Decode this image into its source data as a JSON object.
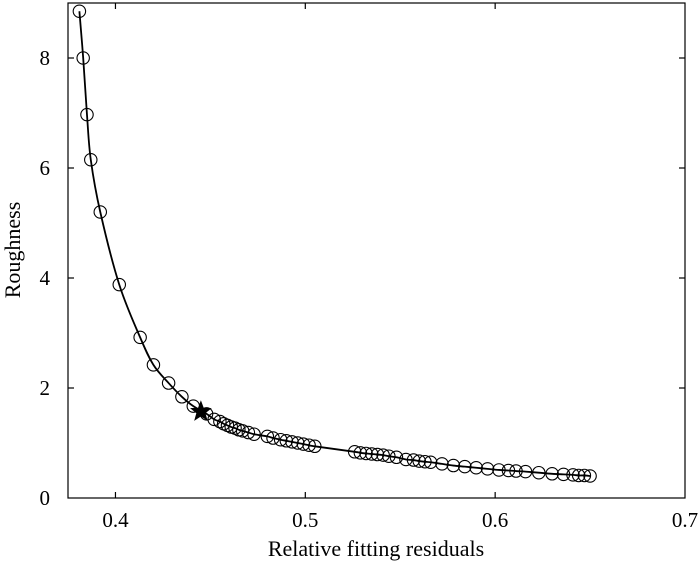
{
  "chart_data": {
    "type": "scatter",
    "title": "",
    "xlabel": "Relative fitting residuals",
    "ylabel": "Roughness",
    "xlim": [
      0.375,
      0.7
    ],
    "ylim": [
      0,
      9
    ],
    "xticks": [
      0.4,
      0.5,
      0.6,
      0.7
    ],
    "yticks": [
      0,
      2,
      4,
      6,
      8
    ],
    "xtick_labels": [
      "0.4",
      "0.5",
      "0.6",
      "0.7"
    ],
    "ytick_labels": [
      "0",
      "2",
      "4",
      "6",
      "8"
    ],
    "grid": false,
    "legend": "none",
    "series": [
      {
        "marker": "open-circle",
        "line": "smooth-curve",
        "x": [
          0.381,
          0.383,
          0.385,
          0.387,
          0.392,
          0.402,
          0.413,
          0.42,
          0.428,
          0.435,
          0.441,
          0.448,
          0.452,
          0.455,
          0.457,
          0.459,
          0.461,
          0.463,
          0.465,
          0.467,
          0.47,
          0.473,
          0.48,
          0.483,
          0.487,
          0.49,
          0.493,
          0.496,
          0.499,
          0.502,
          0.505,
          0.526,
          0.529,
          0.532,
          0.535,
          0.538,
          0.541,
          0.544,
          0.548,
          0.553,
          0.557,
          0.56,
          0.563,
          0.566,
          0.572,
          0.578,
          0.584,
          0.59,
          0.596,
          0.602,
          0.607,
          0.611,
          0.616,
          0.623,
          0.63,
          0.636,
          0.641,
          0.644,
          0.647,
          0.65
        ],
        "y": [
          8.85,
          8.0,
          6.97,
          6.15,
          5.2,
          3.88,
          2.92,
          2.42,
          2.09,
          1.84,
          1.67,
          1.53,
          1.43,
          1.39,
          1.35,
          1.32,
          1.29,
          1.27,
          1.24,
          1.22,
          1.19,
          1.16,
          1.12,
          1.09,
          1.06,
          1.04,
          1.02,
          1.0,
          0.98,
          0.96,
          0.94,
          0.84,
          0.82,
          0.81,
          0.8,
          0.79,
          0.78,
          0.76,
          0.74,
          0.7,
          0.69,
          0.67,
          0.66,
          0.65,
          0.62,
          0.59,
          0.57,
          0.55,
          0.53,
          0.51,
          0.5,
          0.49,
          0.48,
          0.46,
          0.44,
          0.43,
          0.42,
          0.41,
          0.41,
          0.4
        ]
      }
    ],
    "highlight": {
      "marker": "filled-star",
      "x": 0.445,
      "y": 1.57
    }
  }
}
